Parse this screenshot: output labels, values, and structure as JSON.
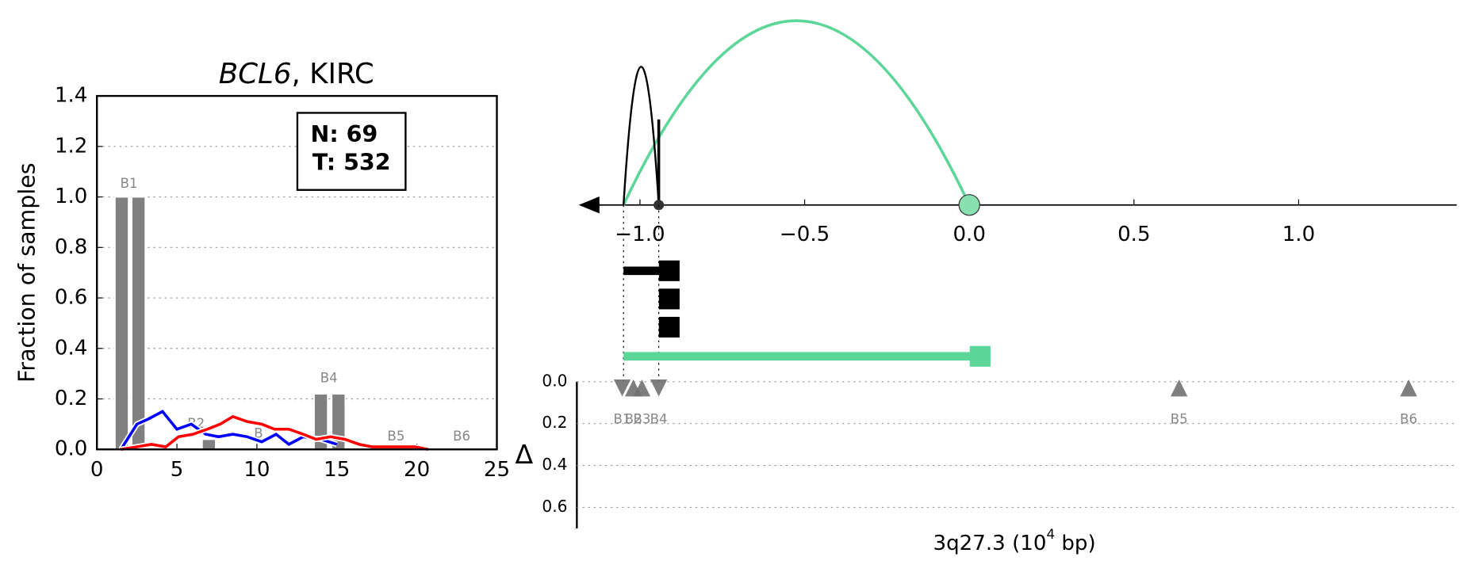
{
  "chart_data": [
    {
      "type": "bar_line",
      "title": [
        "BCL6",
        ", KIRC"
      ],
      "ylabel": "Fraction of samples",
      "xlim": [
        0,
        25
      ],
      "ylim": [
        0,
        1.4
      ],
      "xticks": [
        0,
        5,
        10,
        15,
        20,
        25
      ],
      "yticks": [
        {
          "value": 0,
          "label": "0.0"
        },
        0.2,
        0.4,
        0.6,
        0.8,
        {
          "value": 1,
          "label": "1.0"
        },
        1.2,
        1.4
      ],
      "grid": true,
      "annotation": [
        "N: 69",
        "T: 532"
      ],
      "bar_color": "#808080",
      "bar_groups": [
        {
          "label": "B1",
          "label_x": 2.0,
          "label_y": 1.05,
          "x": [
            1.55,
            2.6
          ],
          "values": [
            1.0,
            1.0
          ]
        },
        {
          "label": "B2",
          "label_x": 6.2,
          "label_y": 0.1,
          "x": [
            7.0
          ],
          "values": [
            0.04
          ]
        },
        {
          "label": "B",
          "label_x": 10.1,
          "label_y": 0.06,
          "x": [],
          "values": []
        },
        {
          "label": "B4",
          "label_x": 14.5,
          "label_y": 0.28,
          "x": [
            14.0,
            15.1
          ],
          "values": [
            0.22,
            0.22
          ]
        },
        {
          "label": "B5",
          "label_x": 18.7,
          "label_y": 0.05,
          "x": [],
          "values": []
        },
        {
          "label": "B6",
          "label_x": 22.8,
          "label_y": 0.05,
          "x": [],
          "values": []
        }
      ],
      "series": [
        {
          "color": "#0000ff",
          "x": [
            1.5,
            2.5,
            3.2,
            4.1,
            5.0,
            5.9,
            6.8,
            7.6,
            8.5,
            9.4,
            10.3,
            11.2,
            12.0,
            12.9,
            14.0,
            15.0
          ],
          "values": [
            0,
            0.1,
            0.12,
            0.15,
            0.08,
            0.1,
            0.06,
            0.05,
            0.06,
            0.05,
            0.03,
            0.06,
            0.02,
            0.05,
            0.04,
            0.02
          ]
        },
        {
          "color": "#ff0000",
          "x": [
            1.5,
            2.5,
            3.4,
            4.3,
            5.1,
            6.0,
            6.9,
            7.7,
            8.5,
            9.4,
            10.3,
            11.1,
            12.0,
            12.9,
            13.7,
            14.6,
            15.5,
            16.4,
            17.2,
            18.1,
            19.0,
            19.9,
            20.7
          ],
          "values": [
            0,
            0.01,
            0.02,
            0.01,
            0.05,
            0.06,
            0.08,
            0.1,
            0.13,
            0.11,
            0.1,
            0.08,
            0.08,
            0.06,
            0.04,
            0.05,
            0.04,
            0.02,
            0.01,
            0.01,
            0.01,
            0.01,
            0
          ]
        }
      ]
    },
    {
      "type": "arc_track",
      "xlim": [
        -1.186,
        1.48
      ],
      "xticks": [
        {
          "value": -1,
          "label": "−1.0"
        },
        {
          "value": -0.5,
          "label": "−0.5"
        },
        {
          "value": 0,
          "label": "0.0"
        },
        0.5,
        {
          "value": 1,
          "label": "1.0"
        }
      ],
      "arcs": [
        {
          "start": -1.05,
          "end": 0.0,
          "height": 0.56,
          "color": "#5cd699"
        },
        {
          "start": -1.05,
          "end": -0.943,
          "height": 0.42,
          "color": "#000000"
        }
      ],
      "stem": {
        "x": -0.943,
        "height": 0.26,
        "color": "#000000"
      },
      "points": [
        {
          "x": -0.943,
          "color": "#333333"
        },
        {
          "x": 0.0,
          "color": "#88e0b0"
        }
      ],
      "segments": [
        {
          "start": -1.05,
          "end": -0.914,
          "color": "#000000"
        },
        {
          "start": -0.914,
          "end": -0.914,
          "color": "#000000"
        },
        {
          "start": -0.914,
          "end": -0.914,
          "color": "#000000"
        },
        {
          "start": -1.05,
          "end": 0.03,
          "color": "#5cd699"
        }
      ],
      "ylabel": "Δ",
      "xlabel": [
        "3q27.3 (10",
        "4",
        " bp)"
      ],
      "ylim": [
        0,
        0.7
      ],
      "yticks": [
        {
          "value": 0,
          "label": "0.0"
        },
        0.2,
        0.4,
        0.6
      ],
      "grid": true,
      "marker_color": "#707070",
      "markers": [
        {
          "label": "B1",
          "x": -1.054,
          "delta": 0.03,
          "dir": "down"
        },
        {
          "label": "B2",
          "x": -1.02,
          "delta": 0.03,
          "dir": "up"
        },
        {
          "label": "B3",
          "x": -0.994,
          "delta": 0.03,
          "dir": "up"
        },
        {
          "label": "B4",
          "x": -0.943,
          "delta": 0.03,
          "dir": "down"
        },
        {
          "label": "B5",
          "x": 0.637,
          "delta": 0.03,
          "dir": "up"
        },
        {
          "label": "B6",
          "x": 1.334,
          "delta": 0.03,
          "dir": "up"
        }
      ]
    }
  ]
}
